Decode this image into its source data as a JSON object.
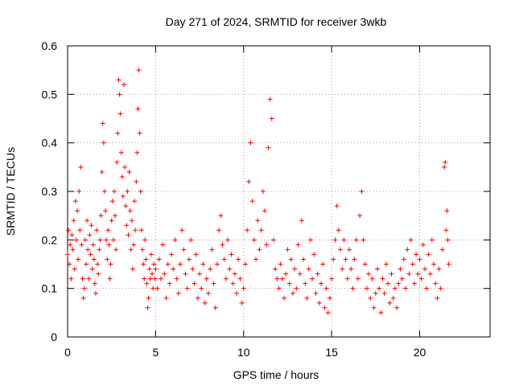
{
  "chart_data": {
    "type": "scatter",
    "title": "Day 271 of 2024, SRMTID for receiver 3wkb",
    "xlabel": "GPS time / hours",
    "ylabel": "SRMTID / TECUs",
    "xlim": [
      0,
      24
    ],
    "ylim": [
      0,
      0.6
    ],
    "xticks": [
      0,
      5,
      10,
      15,
      20
    ],
    "xtick_labels": [
      "0",
      "5",
      "10",
      "15",
      "20"
    ],
    "yticks": [
      0,
      0.1,
      0.2,
      0.3,
      0.4,
      0.5,
      0.6
    ],
    "ytick_labels": [
      "0",
      "0.1",
      "0.2",
      "0.3",
      "0.4",
      "0.5",
      "0.6"
    ],
    "grid": true,
    "marker": "+",
    "color": "#ff0000",
    "series": [
      {
        "name": "SRMTID",
        "points": [
          [
            0.0,
            0.17
          ],
          [
            0.05,
            0.22
          ],
          [
            0.1,
            0.15
          ],
          [
            0.15,
            0.19
          ],
          [
            0.2,
            0.12
          ],
          [
            0.25,
            0.21
          ],
          [
            0.3,
            0.18
          ],
          [
            0.35,
            0.24
          ],
          [
            0.4,
            0.14
          ],
          [
            0.45,
            0.28
          ],
          [
            0.5,
            0.2
          ],
          [
            0.55,
            0.26
          ],
          [
            0.6,
            0.16
          ],
          [
            0.65,
            0.3
          ],
          [
            0.7,
            0.22
          ],
          [
            0.75,
            0.35
          ],
          [
            0.8,
            0.19
          ],
          [
            0.85,
            0.12
          ],
          [
            0.9,
            0.08
          ],
          [
            0.95,
            0.1
          ],
          [
            1.0,
            0.2
          ],
          [
            1.05,
            0.15
          ],
          [
            1.1,
            0.24
          ],
          [
            1.15,
            0.18
          ],
          [
            1.2,
            0.12
          ],
          [
            1.25,
            0.21
          ],
          [
            1.3,
            0.17
          ],
          [
            1.35,
            0.23
          ],
          [
            1.4,
            0.14
          ],
          [
            1.45,
            0.19
          ],
          [
            1.5,
            0.16
          ],
          [
            1.55,
            0.11
          ],
          [
            1.6,
            0.09
          ],
          [
            1.65,
            0.22
          ],
          [
            1.7,
            0.15
          ],
          [
            1.75,
            0.13
          ],
          [
            1.8,
            0.18
          ],
          [
            1.85,
            0.2
          ],
          [
            1.9,
            0.25
          ],
          [
            1.95,
            0.34
          ],
          [
            2.0,
            0.44
          ],
          [
            2.05,
            0.4
          ],
          [
            2.1,
            0.3
          ],
          [
            2.15,
            0.26
          ],
          [
            2.2,
            0.2
          ],
          [
            2.25,
            0.16
          ],
          [
            2.3,
            0.22
          ],
          [
            2.35,
            0.19
          ],
          [
            2.4,
            0.12
          ],
          [
            2.45,
            0.15
          ],
          [
            2.5,
            0.24
          ],
          [
            2.55,
            0.28
          ],
          [
            2.6,
            0.2
          ],
          [
            2.65,
            0.3
          ],
          [
            2.7,
            0.25
          ],
          [
            2.75,
            0.18
          ],
          [
            2.8,
            0.36
          ],
          [
            2.85,
            0.42
          ],
          [
            2.9,
            0.53
          ],
          [
            2.95,
            0.5
          ],
          [
            3.0,
            0.46
          ],
          [
            3.05,
            0.38
          ],
          [
            3.1,
            0.33
          ],
          [
            3.15,
            0.29
          ],
          [
            3.2,
            0.52
          ],
          [
            3.25,
            0.35
          ],
          [
            3.3,
            0.27
          ],
          [
            3.35,
            0.23
          ],
          [
            3.4,
            0.3
          ],
          [
            3.45,
            0.21
          ],
          [
            3.5,
            0.34
          ],
          [
            3.55,
            0.26
          ],
          [
            3.6,
            0.18
          ],
          [
            3.65,
            0.24
          ],
          [
            3.7,
            0.14
          ],
          [
            3.75,
            0.19
          ],
          [
            3.8,
            0.28
          ],
          [
            3.85,
            0.22
          ],
          [
            3.9,
            0.32
          ],
          [
            3.95,
            0.38
          ],
          [
            4.0,
            0.47
          ],
          [
            4.05,
            0.55
          ],
          [
            4.1,
            0.42
          ],
          [
            4.15,
            0.3
          ],
          [
            4.2,
            0.22
          ],
          [
            4.25,
            0.18
          ],
          [
            4.3,
            0.15
          ],
          [
            4.35,
            0.12
          ],
          [
            4.4,
            0.2
          ],
          [
            4.45,
            0.16
          ],
          [
            4.5,
            0.11
          ],
          [
            4.55,
            0.06
          ],
          [
            4.6,
            0.08
          ],
          [
            4.65,
            0.14
          ],
          [
            4.7,
            0.12
          ],
          [
            4.75,
            0.17
          ],
          [
            4.8,
            0.13
          ],
          [
            4.85,
            0.1
          ],
          [
            4.9,
            0.15
          ],
          [
            4.95,
            0.12
          ],
          [
            5.0,
            0.14
          ],
          [
            5.1,
            0.1
          ],
          [
            5.2,
            0.16
          ],
          [
            5.3,
            0.12
          ],
          [
            5.4,
            0.19
          ],
          [
            5.5,
            0.13
          ],
          [
            5.6,
            0.08
          ],
          [
            5.7,
            0.15
          ],
          [
            5.8,
            0.11
          ],
          [
            5.9,
            0.17
          ],
          [
            6.0,
            0.14
          ],
          [
            6.1,
            0.2
          ],
          [
            6.2,
            0.12
          ],
          [
            6.3,
            0.09
          ],
          [
            6.4,
            0.15
          ],
          [
            6.5,
            0.22
          ],
          [
            6.6,
            0.18
          ],
          [
            6.7,
            0.13
          ],
          [
            6.8,
            0.1
          ],
          [
            6.9,
            0.16
          ],
          [
            7.0,
            0.2
          ],
          [
            7.1,
            0.14
          ],
          [
            7.2,
            0.11
          ],
          [
            7.3,
            0.17
          ],
          [
            7.4,
            0.08
          ],
          [
            7.5,
            0.13
          ],
          [
            7.6,
            0.1
          ],
          [
            7.7,
            0.15
          ],
          [
            7.8,
            0.07
          ],
          [
            7.9,
            0.12
          ],
          [
            8.0,
            0.09
          ],
          [
            8.1,
            0.14
          ],
          [
            8.2,
            0.18
          ],
          [
            8.3,
            0.11
          ],
          [
            8.4,
            0.06
          ],
          [
            8.5,
            0.15
          ],
          [
            8.6,
            0.22
          ],
          [
            8.7,
            0.25
          ],
          [
            8.8,
            0.19
          ],
          [
            8.9,
            0.16
          ],
          [
            9.0,
            0.12
          ],
          [
            9.1,
            0.2
          ],
          [
            9.2,
            0.14
          ],
          [
            9.3,
            0.17
          ],
          [
            9.4,
            0.11
          ],
          [
            9.5,
            0.13
          ],
          [
            9.6,
            0.09
          ],
          [
            9.7,
            0.16
          ],
          [
            9.8,
            0.12
          ],
          [
            9.9,
            0.07
          ],
          [
            10.0,
            0.1
          ],
          [
            10.1,
            0.15
          ],
          [
            10.2,
            0.22
          ],
          [
            10.3,
            0.32
          ],
          [
            10.4,
            0.4
          ],
          [
            10.5,
            0.28
          ],
          [
            10.6,
            0.2
          ],
          [
            10.7,
            0.16
          ],
          [
            10.8,
            0.24
          ],
          [
            10.9,
            0.18
          ],
          [
            11.0,
            0.22
          ],
          [
            11.1,
            0.3
          ],
          [
            11.2,
            0.26
          ],
          [
            11.3,
            0.19
          ],
          [
            11.4,
            0.39
          ],
          [
            11.5,
            0.49
          ],
          [
            11.6,
            0.45
          ],
          [
            11.7,
            0.2
          ],
          [
            11.8,
            0.14
          ],
          [
            11.9,
            0.12
          ],
          [
            12.0,
            0.1
          ],
          [
            12.1,
            0.15
          ],
          [
            12.2,
            0.12
          ],
          [
            12.3,
            0.08
          ],
          [
            12.4,
            0.13
          ],
          [
            12.5,
            0.18
          ],
          [
            12.6,
            0.11
          ],
          [
            12.7,
            0.16
          ],
          [
            12.8,
            0.09
          ],
          [
            12.9,
            0.14
          ],
          [
            13.0,
            0.1
          ],
          [
            13.1,
            0.19
          ],
          [
            13.2,
            0.13
          ],
          [
            13.3,
            0.24
          ],
          [
            13.4,
            0.16
          ],
          [
            13.5,
            0.11
          ],
          [
            13.6,
            0.08
          ],
          [
            13.7,
            0.14
          ],
          [
            13.8,
            0.2
          ],
          [
            13.9,
            0.12
          ],
          [
            14.0,
            0.17
          ],
          [
            14.1,
            0.09
          ],
          [
            14.2,
            0.13
          ],
          [
            14.3,
            0.07
          ],
          [
            14.4,
            0.11
          ],
          [
            14.5,
            0.15
          ],
          [
            14.6,
            0.06
          ],
          [
            14.7,
            0.1
          ],
          [
            14.8,
            0.05
          ],
          [
            14.9,
            0.08
          ],
          [
            15.0,
            0.12
          ],
          [
            15.1,
            0.16
          ],
          [
            15.2,
            0.2
          ],
          [
            15.3,
            0.27
          ],
          [
            15.4,
            0.22
          ],
          [
            15.5,
            0.18
          ],
          [
            15.6,
            0.14
          ],
          [
            15.7,
            0.2
          ],
          [
            15.8,
            0.16
          ],
          [
            15.9,
            0.12
          ],
          [
            16.0,
            0.18
          ],
          [
            16.1,
            0.14
          ],
          [
            16.2,
            0.1
          ],
          [
            16.3,
            0.16
          ],
          [
            16.4,
            0.2
          ],
          [
            16.5,
            0.12
          ],
          [
            16.6,
            0.25
          ],
          [
            16.7,
            0.3
          ],
          [
            16.8,
            0.2
          ],
          [
            16.9,
            0.15
          ],
          [
            17.0,
            0.1
          ],
          [
            17.1,
            0.13
          ],
          [
            17.2,
            0.08
          ],
          [
            17.3,
            0.12
          ],
          [
            17.4,
            0.06
          ],
          [
            17.5,
            0.09
          ],
          [
            17.6,
            0.14
          ],
          [
            17.7,
            0.1
          ],
          [
            17.8,
            0.05
          ],
          [
            17.9,
            0.12
          ],
          [
            18.0,
            0.09
          ],
          [
            18.1,
            0.15
          ],
          [
            18.2,
            0.11
          ],
          [
            18.3,
            0.07
          ],
          [
            18.4,
            0.13
          ],
          [
            18.5,
            0.08
          ],
          [
            18.6,
            0.1
          ],
          [
            18.7,
            0.06
          ],
          [
            18.8,
            0.11
          ],
          [
            18.9,
            0.14
          ],
          [
            19.0,
            0.12
          ],
          [
            19.1,
            0.16
          ],
          [
            19.2,
            0.1
          ],
          [
            19.3,
            0.18
          ],
          [
            19.4,
            0.13
          ],
          [
            19.5,
            0.2
          ],
          [
            19.6,
            0.15
          ],
          [
            19.7,
            0.11
          ],
          [
            19.8,
            0.17
          ],
          [
            19.9,
            0.13
          ],
          [
            20.0,
            0.16
          ],
          [
            20.1,
            0.12
          ],
          [
            20.2,
            0.19
          ],
          [
            20.3,
            0.14
          ],
          [
            20.4,
            0.1
          ],
          [
            20.5,
            0.17
          ],
          [
            20.6,
            0.13
          ],
          [
            20.7,
            0.2
          ],
          [
            20.8,
            0.15
          ],
          [
            20.9,
            0.11
          ],
          [
            21.0,
            0.08
          ],
          [
            21.1,
            0.14
          ],
          [
            21.2,
            0.1
          ],
          [
            21.3,
            0.18
          ],
          [
            21.4,
            0.35
          ],
          [
            21.45,
            0.36
          ],
          [
            21.5,
            0.22
          ],
          [
            21.55,
            0.26
          ],
          [
            21.6,
            0.2
          ],
          [
            21.65,
            0.15
          ]
        ]
      }
    ]
  }
}
